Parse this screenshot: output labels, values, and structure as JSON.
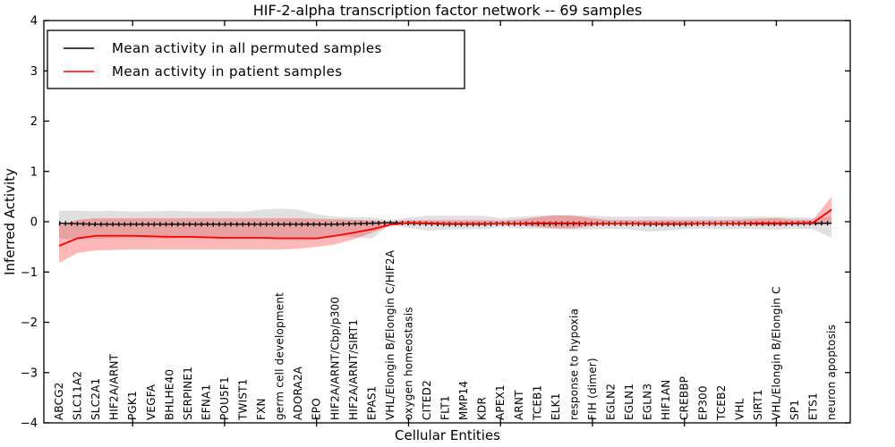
{
  "title": "HIF-2-alpha transcription factor network -- 69 samples",
  "sample_count": "69",
  "colors": {
    "permuted_line": "#000000",
    "patient_line": "#ff0000",
    "permuted_band": "rgba(0,0,0,0.12)",
    "patient_band": "rgba(255,0,0,0.28)",
    "background": "#ffffff"
  },
  "chart_data": {
    "type": "line",
    "title": "HIF-2-alpha transcription factor network -- 69 samples",
    "xlabel": "Cellular Entities",
    "ylabel": "Inferred Activity",
    "ylim": [
      -4,
      4
    ],
    "yticks": [
      -4,
      -3,
      -2,
      -1,
      0,
      1,
      2,
      3,
      4
    ],
    "x_major_ticks": [
      5,
      10,
      15,
      20,
      25,
      30,
      35,
      40
    ],
    "grid": false,
    "legend_position": "upper left",
    "categories": [
      "ABCG2",
      "SLC11A2",
      "SLC2A1",
      "HIF2A/ARNT",
      "PGK1",
      "VEGFA",
      "BHLHE40",
      "SERPINE1",
      "EFNA1",
      "POU5F1",
      "TWIST1",
      "FXN",
      "germ cell development",
      "ADORA2A",
      "EPO",
      "HIF2A/ARNT/Cbp/p300",
      "HIF2A/ARNT/SIRT1",
      "EPAS1",
      "VHL/Elongin B/Elongin C/HIF2A",
      "oxygen homeostasis",
      "CITED2",
      "FLT1",
      "MMP14",
      "KDR",
      "APEX1",
      "ARNT",
      "TCEB1",
      "ELK1",
      "response to hypoxia",
      "FIH (dimer)",
      "EGLN2",
      "EGLN1",
      "EGLN3",
      "HIF1AN",
      "CREBBP",
      "EP300",
      "TCEB2",
      "VHL",
      "SIRT1",
      "VHL/Elongin B/Elongin C",
      "SP1",
      "ETS1",
      "neuron apoptosis"
    ],
    "series": [
      {
        "name": "Mean activity in all permuted samples",
        "color": "#000000",
        "marker": "tick",
        "values": [
          -0.03,
          -0.04,
          -0.05,
          -0.05,
          -0.05,
          -0.05,
          -0.05,
          -0.05,
          -0.05,
          -0.05,
          -0.05,
          -0.05,
          -0.05,
          -0.05,
          -0.05,
          -0.05,
          -0.04,
          -0.03,
          -0.02,
          -0.03,
          -0.04,
          -0.05,
          -0.05,
          -0.05,
          -0.04,
          -0.04,
          -0.04,
          -0.04,
          -0.04,
          -0.04,
          -0.04,
          -0.04,
          -0.05,
          -0.05,
          -0.05,
          -0.04,
          -0.04,
          -0.04,
          -0.04,
          -0.04,
          -0.04,
          -0.03,
          -0.03
        ],
        "band": {
          "color": "rgba(0,0,0,0.12)",
          "top": [
            0.22,
            0.22,
            0.21,
            0.22,
            0.2,
            0.21,
            0.22,
            0.21,
            0.2,
            0.21,
            0.2,
            0.24,
            0.26,
            0.24,
            0.15,
            0.1,
            0.09,
            0.09,
            0.03,
            0.08,
            0.12,
            0.12,
            0.12,
            0.12,
            0.07,
            0.1,
            0.12,
            0.13,
            0.12,
            0.12,
            0.1,
            0.1,
            0.11,
            0.1,
            0.1,
            0.1,
            0.1,
            0.1,
            0.1,
            0.1,
            0.09,
            0.08,
            0.1
          ],
          "bottom": [
            -0.33,
            -0.35,
            -0.34,
            -0.33,
            -0.32,
            -0.33,
            -0.34,
            -0.33,
            -0.32,
            -0.33,
            -0.32,
            -0.33,
            -0.34,
            -0.32,
            -0.3,
            -0.28,
            -0.3,
            -0.34,
            -0.05,
            -0.12,
            -0.18,
            -0.16,
            -0.15,
            -0.15,
            -0.1,
            -0.13,
            -0.14,
            -0.15,
            -0.16,
            -0.15,
            -0.14,
            -0.15,
            -0.2,
            -0.18,
            -0.15,
            -0.14,
            -0.15,
            -0.14,
            -0.15,
            -0.16,
            -0.14,
            -0.15,
            -0.32
          ]
        }
      },
      {
        "name": "Mean activity in patient samples",
        "color": "#ff0000",
        "marker": "none",
        "values": [
          -0.48,
          -0.33,
          -0.28,
          -0.28,
          -0.28,
          -0.29,
          -0.3,
          -0.3,
          -0.31,
          -0.32,
          -0.32,
          -0.32,
          -0.33,
          -0.33,
          -0.33,
          -0.28,
          -0.22,
          -0.15,
          -0.06,
          -0.02,
          -0.03,
          -0.04,
          -0.04,
          -0.04,
          -0.04,
          -0.04,
          -0.03,
          -0.03,
          -0.03,
          -0.04,
          -0.04,
          -0.04,
          -0.04,
          -0.04,
          -0.04,
          -0.04,
          -0.04,
          -0.04,
          -0.03,
          -0.03,
          -0.03,
          -0.02,
          0.24
        ],
        "band": {
          "color": "rgba(255,0,0,0.28)",
          "top": [
            -0.08,
            0.04,
            0.07,
            0.07,
            0.07,
            0.07,
            0.07,
            0.07,
            0.07,
            0.07,
            0.07,
            0.07,
            0.07,
            0.07,
            0.06,
            0.05,
            0.04,
            0.03,
            0.0,
            0.03,
            0.03,
            0.03,
            0.03,
            0.03,
            0.02,
            0.04,
            0.09,
            0.13,
            0.12,
            0.07,
            0.03,
            0.03,
            0.03,
            0.03,
            0.03,
            0.03,
            0.03,
            0.04,
            0.06,
            0.07,
            0.04,
            0.04,
            0.5
          ],
          "bottom": [
            -0.82,
            -0.62,
            -0.57,
            -0.56,
            -0.55,
            -0.55,
            -0.55,
            -0.55,
            -0.55,
            -0.55,
            -0.55,
            -0.55,
            -0.55,
            -0.54,
            -0.5,
            -0.45,
            -0.35,
            -0.22,
            -0.08,
            -0.05,
            -0.06,
            -0.06,
            -0.06,
            -0.06,
            -0.05,
            -0.07,
            -0.1,
            -0.13,
            -0.13,
            -0.08,
            -0.05,
            -0.05,
            -0.05,
            -0.05,
            -0.05,
            -0.05,
            -0.05,
            -0.06,
            -0.07,
            -0.08,
            -0.05,
            -0.06,
            -0.04
          ]
        }
      }
    ]
  }
}
